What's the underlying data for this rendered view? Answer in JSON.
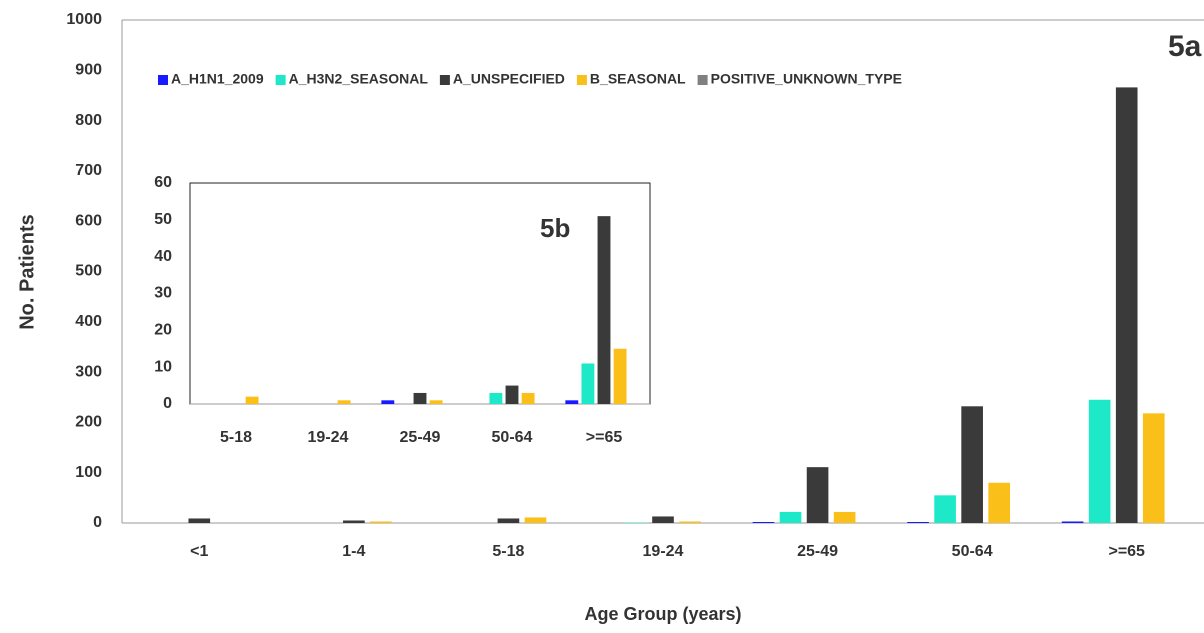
{
  "chart_data": [
    {
      "type": "bar",
      "annotation": "5a",
      "x_label": "Age Group (years)",
      "y_label": "No. Patients",
      "categories": [
        "<1",
        "1-4",
        "5-18",
        "19-24",
        "25-49",
        "50-64",
        ">=65"
      ],
      "series": [
        {
          "name": "A_H1N1_2009",
          "color": "#1a1aff",
          "values": [
            0,
            0,
            0,
            0,
            2,
            2,
            3
          ]
        },
        {
          "name": "A_H3N2_SEASONAL",
          "color": "#1de9c8",
          "values": [
            0,
            0,
            0,
            1,
            22,
            55,
            245
          ]
        },
        {
          "name": "A_UNSPECIFIED",
          "color": "#3a3a3a",
          "values": [
            9,
            5,
            9,
            13,
            111,
            232,
            866
          ]
        },
        {
          "name": "B_SEASONAL",
          "color": "#fbbf1a",
          "values": [
            0,
            3,
            11,
            3,
            22,
            80,
            218
          ]
        },
        {
          "name": "POSITIVE_UNKNOWN_TYPE",
          "color": "#808080",
          "values": [
            0,
            0,
            0,
            0,
            0,
            0,
            0
          ]
        }
      ],
      "ylim": [
        0,
        1000
      ],
      "yticks": [
        0,
        100,
        200,
        300,
        400,
        500,
        600,
        700,
        800,
        900,
        1000
      ],
      "legend": "top",
      "grid": false
    },
    {
      "type": "bar",
      "annotation": "5b",
      "categories": [
        "5-18",
        "19-24",
        "25-49",
        "50-64",
        ">=65"
      ],
      "series": [
        {
          "color": "#1a1aff",
          "values": [
            0,
            0,
            1,
            0,
            1
          ]
        },
        {
          "color": "#1de9c8",
          "values": [
            0,
            0,
            0,
            3,
            11
          ]
        },
        {
          "color": "#3a3a3a",
          "values": [
            0,
            0,
            3,
            5,
            51
          ]
        },
        {
          "color": "#fbbf1a",
          "values": [
            2,
            1,
            1,
            3,
            15
          ]
        },
        {
          "color": "#808080",
          "values": [
            0,
            0,
            0,
            0,
            0
          ]
        }
      ],
      "ylim": [
        0,
        60
      ],
      "yticks": [
        0,
        10,
        20,
        30,
        40,
        50,
        60
      ],
      "grid": false
    }
  ]
}
